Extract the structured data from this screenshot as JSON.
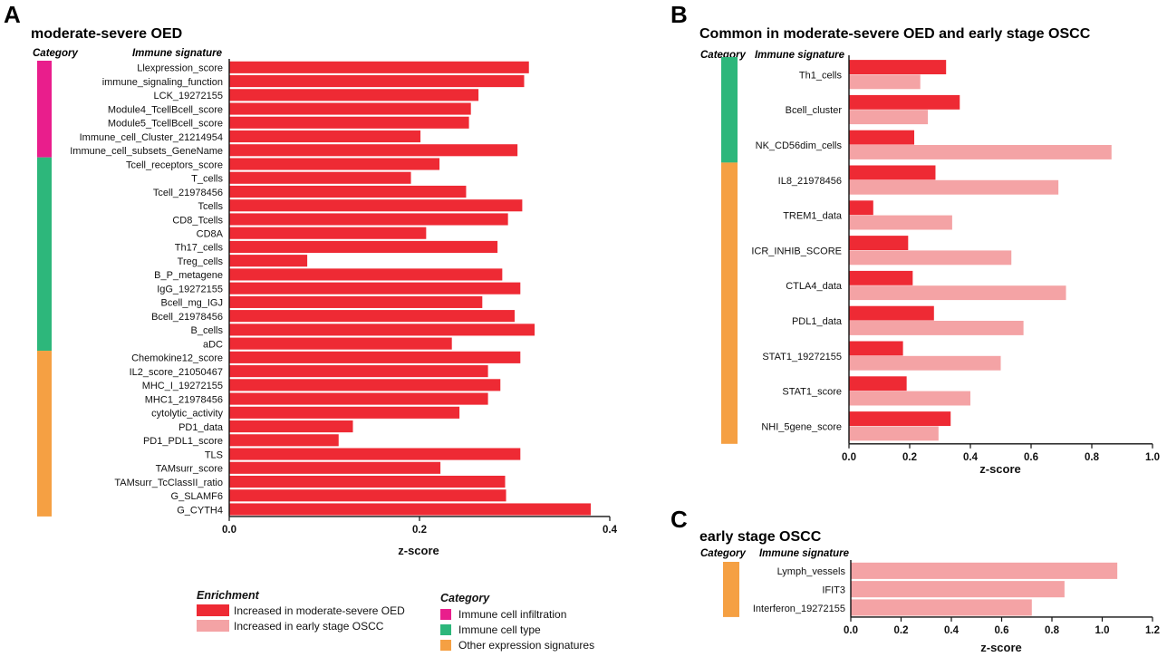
{
  "colors": {
    "moderate_severe_oed": "#ee2a34",
    "early_stage_oscc": "#f4a3a5",
    "immune_cell_infiltration": "#e91e8c",
    "immune_cell_type": "#2db77b",
    "other_expression_signatures": "#f5a043",
    "axis": "#111111"
  },
  "chart_data": [
    {
      "panel": "A",
      "type": "bar",
      "orientation": "horizontal",
      "title": "moderate-severe OED",
      "category_header": "Category",
      "signature_header": "Immune signature",
      "xlabel": "z-score",
      "xlim": [
        0,
        0.4
      ],
      "xticks": [
        0.0,
        0.2,
        0.4
      ],
      "xtick_labels": [
        "0.0",
        "0.2",
        "0.4"
      ],
      "categories": [
        "Llexpression_score",
        "immune_signaling_function",
        "LCK_19272155",
        "Module4_TcellBcell_score",
        "Module5_TcellBcell_score",
        "Immune_cell_Cluster_21214954",
        "Immune_cell_subsets_GeneName",
        "Tcell_receptors_score",
        "T_cells",
        "Tcell_21978456",
        "Tcells",
        "CD8_Tcells",
        "CD8A",
        "Th17_cells",
        "Treg_cells",
        "B_P_metagene",
        "IgG_19272155",
        "Bcell_mg_IGJ",
        "Bcell_21978456",
        "B_cells",
        "aDC",
        "Chemokine12_score",
        "IL2_score_21050467",
        "MHC_I_19272155",
        "MHC1_21978456",
        "cytolytic_activity",
        "PD1_data",
        "PD1_PDL1_score",
        "TLS",
        "TAMsurr_score",
        "TAMsurr_TcClassII_ratio",
        "G_SLAMF6",
        "G_CYTH4"
      ],
      "series": [
        {
          "name": "Increased in moderate-severe OED",
          "values": [
            0.315,
            0.31,
            0.262,
            0.254,
            0.252,
            0.201,
            0.303,
            0.221,
            0.191,
            0.249,
            0.308,
            0.293,
            0.207,
            0.282,
            0.082,
            0.287,
            0.306,
            0.266,
            0.3,
            0.321,
            0.234,
            0.306,
            0.272,
            0.285,
            0.272,
            0.242,
            0.13,
            0.115,
            0.306,
            0.222,
            0.29,
            0.291,
            0.38
          ]
        }
      ],
      "category_groups": [
        {
          "category": "Immune cell infiltration",
          "start": 0,
          "end": 6
        },
        {
          "category": "Immune cell type",
          "start": 7,
          "end": 20
        },
        {
          "category": "Other expression signatures",
          "start": 21,
          "end": 32
        }
      ]
    },
    {
      "panel": "B",
      "type": "bar",
      "orientation": "horizontal",
      "title": "Common in moderate-severe OED and early stage OSCC",
      "category_header": "Category",
      "signature_header": "Immune signature",
      "xlabel": "z-score",
      "xlim": [
        0,
        1.0
      ],
      "xticks": [
        0.0,
        0.2,
        0.4,
        0.6,
        0.8,
        1.0
      ],
      "xtick_labels": [
        "0.0",
        "0.2",
        "0.4",
        "0.6",
        "0.8",
        "1.0"
      ],
      "categories": [
        "Th1_cells",
        "Bcell_cluster",
        "NK_CD56dim_cells",
        "IL8_21978456",
        "TREM1_data",
        "ICR_INHIB_SCORE",
        "CTLA4_data",
        "PDL1_data",
        "STAT1_19272155",
        "STAT1_score",
        "NHI_5gene_score"
      ],
      "series": [
        {
          "name": "Increased in moderate-severe OED",
          "values": [
            0.32,
            0.365,
            0.215,
            0.285,
            0.08,
            0.195,
            0.21,
            0.28,
            0.178,
            0.19,
            0.335
          ]
        },
        {
          "name": "Increased in early stage OSCC",
          "values": [
            0.235,
            0.26,
            0.865,
            0.69,
            0.34,
            0.535,
            0.715,
            0.575,
            0.5,
            0.4,
            0.295
          ]
        }
      ],
      "category_groups": [
        {
          "category": "Immune cell type",
          "start": 0,
          "end": 2
        },
        {
          "category": "Other expression signatures",
          "start": 3,
          "end": 10
        }
      ]
    },
    {
      "panel": "C",
      "type": "bar",
      "orientation": "horizontal",
      "title": "early stage OSCC",
      "category_header": "Category",
      "signature_header": "Immune signature",
      "xlabel": "z-score",
      "xlim": [
        0,
        1.2
      ],
      "xticks": [
        0.0,
        0.2,
        0.4,
        0.6,
        0.8,
        1.0,
        1.2
      ],
      "xtick_labels": [
        "0.0",
        "0.2",
        "0.4",
        "0.6",
        "0.8",
        "1.0",
        "1.2"
      ],
      "categories": [
        "Lymph_vessels",
        "IFIT3",
        "Interferon_19272155"
      ],
      "series": [
        {
          "name": "Increased in early stage OSCC",
          "values": [
            1.06,
            0.85,
            0.72
          ]
        }
      ],
      "category_groups": [
        {
          "category": "Other expression signatures",
          "start": 0,
          "end": 2
        }
      ]
    }
  ],
  "legend": {
    "enrichment_title": "Enrichment",
    "enrichment_items": [
      {
        "label": "Increased in moderate-severe OED",
        "color": "#ee2a34"
      },
      {
        "label": "Increased in early stage OSCC",
        "color": "#f4a3a5"
      }
    ],
    "category_title": "Category",
    "category_items": [
      {
        "label": "Immune cell infiltration",
        "color": "#e91e8c"
      },
      {
        "label": "Immune cell type",
        "color": "#2db77b"
      },
      {
        "label": "Other expression signatures",
        "color": "#f5a043"
      }
    ]
  }
}
